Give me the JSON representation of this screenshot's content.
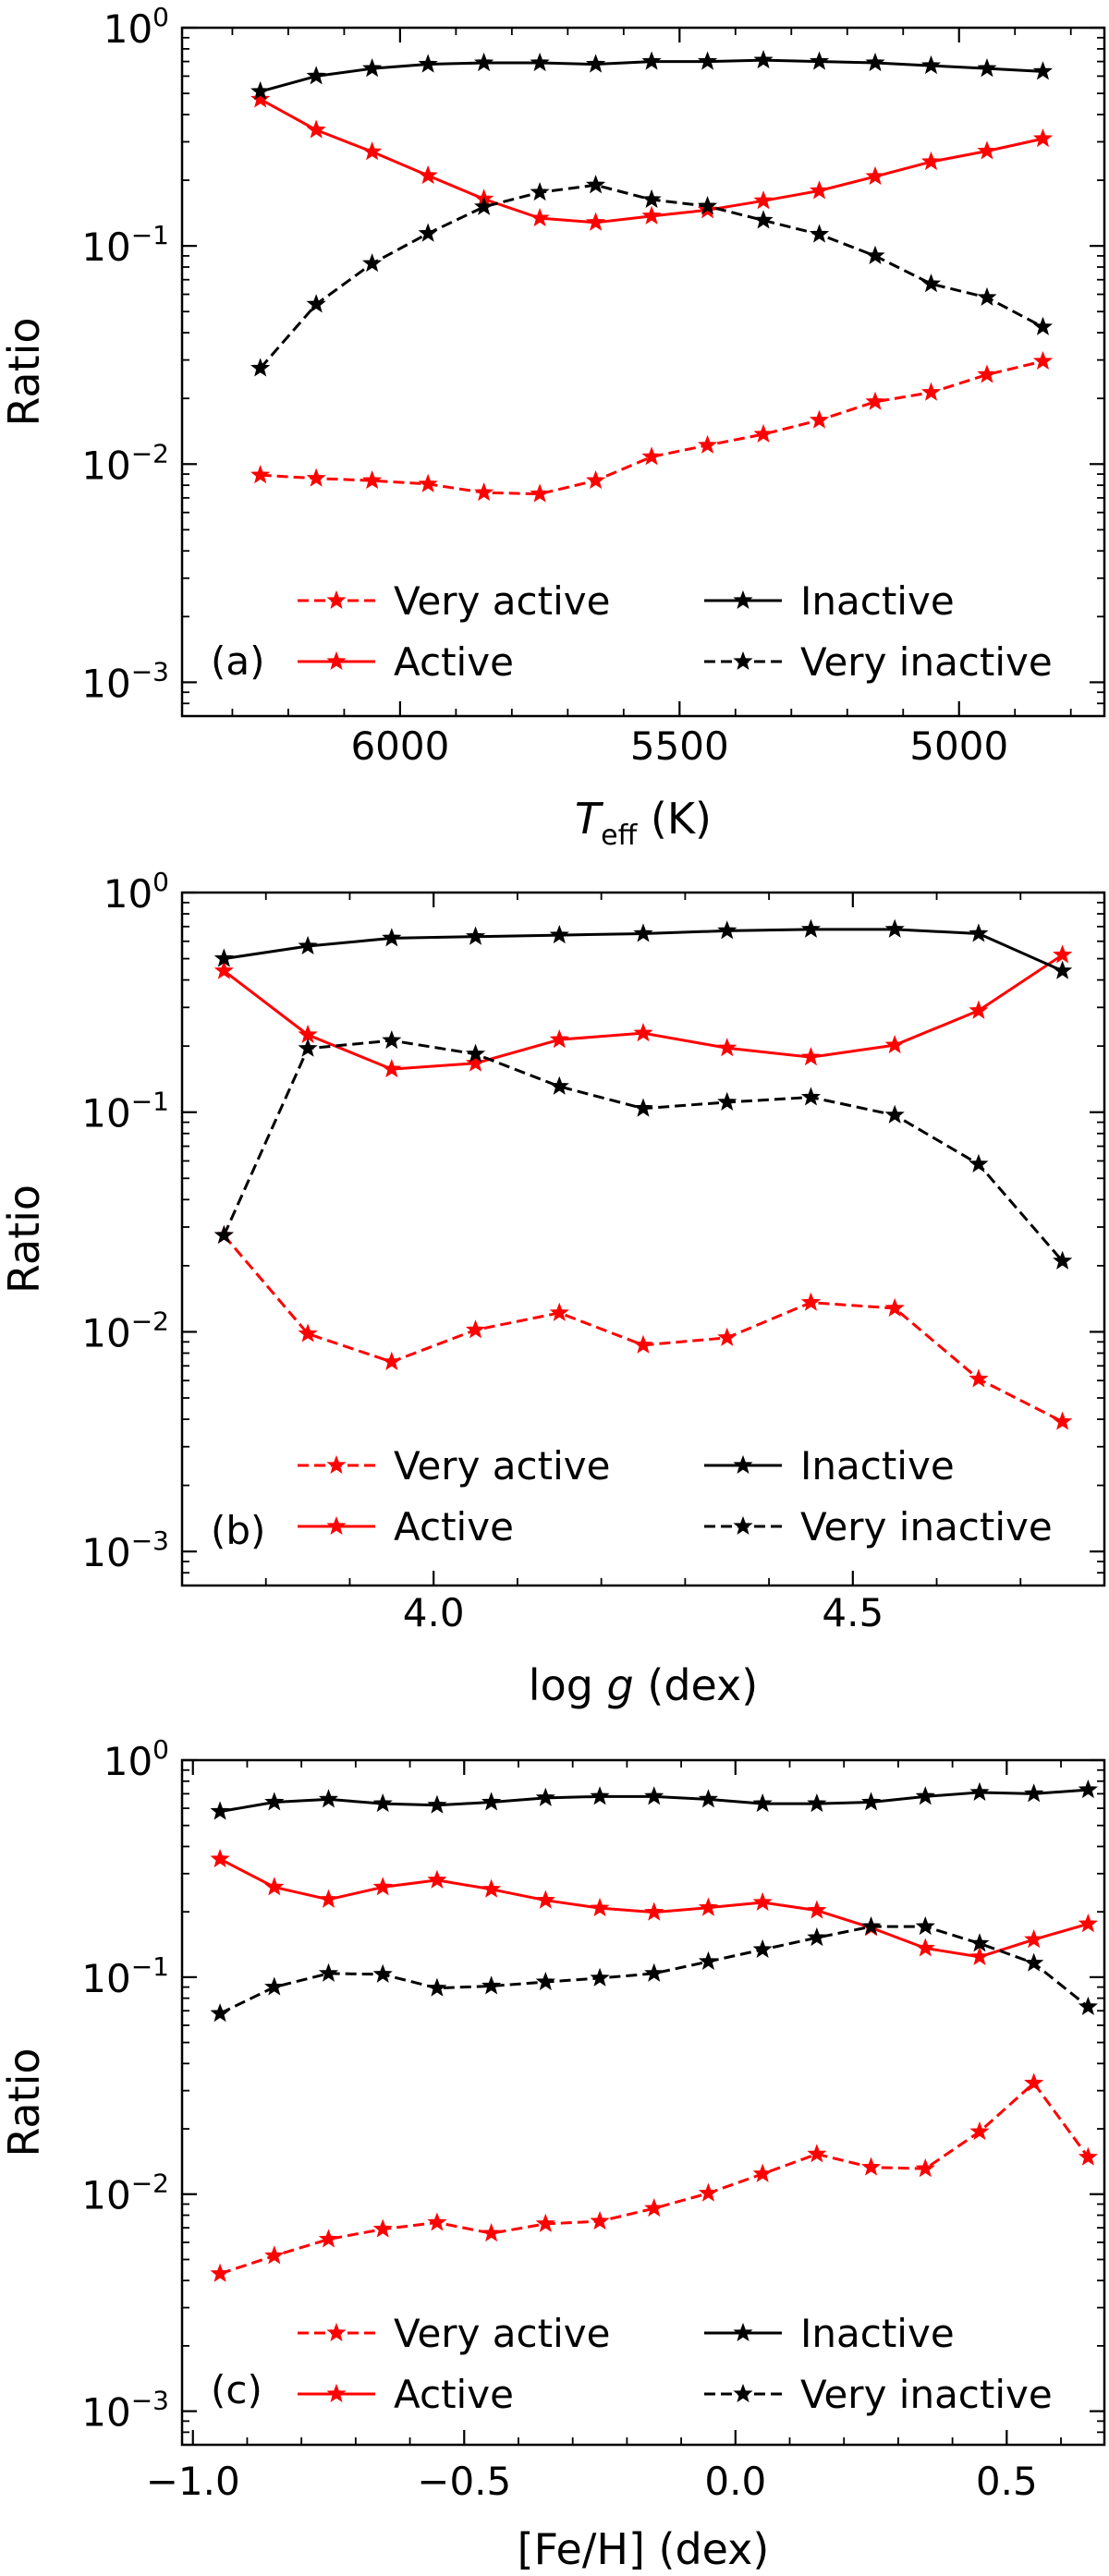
{
  "chart_data": [
    {
      "type": "line",
      "panel_label": "(a)",
      "xlabel_symbol": "T",
      "xlabel_sub": "eff",
      "xlabel_unit": " (K)",
      "ylabel": "Ratio",
      "yscale": "log",
      "ylim": [
        0.0007,
        1.0
      ],
      "xlim": [
        6390,
        4740
      ],
      "xdir": "reversed",
      "xticks": [
        6000,
        5500,
        5000
      ],
      "xtick_labels": [
        "6000",
        "5500",
        "5000"
      ],
      "x": [
        6250,
        6150,
        6050,
        5950,
        5850,
        5750,
        5650,
        5550,
        5450,
        5350,
        5250,
        5150,
        5050,
        4950,
        4850
      ],
      "series": [
        {
          "name": "Very active",
          "color": "#ff0000",
          "style": "dashed",
          "values": [
            0.0089,
            0.0086,
            0.0084,
            0.0081,
            0.0074,
            0.0073,
            0.0084,
            0.0108,
            0.0122,
            0.0137,
            0.0159,
            0.0193,
            0.0213,
            0.0257,
            0.0296
          ]
        },
        {
          "name": "Active",
          "color": "#ff0000",
          "style": "solid",
          "values": [
            0.47,
            0.34,
            0.27,
            0.21,
            0.164,
            0.134,
            0.128,
            0.137,
            0.146,
            0.161,
            0.179,
            0.208,
            0.243,
            0.272,
            0.31
          ]
        },
        {
          "name": "Inactive",
          "color": "#000000",
          "style": "solid",
          "values": [
            0.51,
            0.6,
            0.65,
            0.68,
            0.69,
            0.69,
            0.68,
            0.7,
            0.7,
            0.71,
            0.7,
            0.69,
            0.67,
            0.65,
            0.63
          ]
        },
        {
          "name": "Very inactive",
          "color": "#000000",
          "style": "dashed",
          "values": [
            0.0275,
            0.054,
            0.083,
            0.114,
            0.151,
            0.176,
            0.19,
            0.163,
            0.152,
            0.131,
            0.113,
            0.09,
            0.067,
            0.058,
            0.0425
          ]
        }
      ]
    },
    {
      "type": "line",
      "panel_label": "(b)",
      "xlabel_pre": "log ",
      "xlabel_symbol": "g",
      "xlabel_unit": " (dex)",
      "ylabel": "Ratio",
      "yscale": "log",
      "ylim": [
        0.0007,
        1.0
      ],
      "xlim": [
        3.7,
        4.8
      ],
      "xticks": [
        4.0,
        4.5
      ],
      "xtick_labels": [
        "4.0",
        "4.5"
      ],
      "x": [
        3.75,
        3.85,
        3.95,
        4.05,
        4.15,
        4.25,
        4.35,
        4.45,
        4.55,
        4.65,
        4.75
      ],
      "series": [
        {
          "name": "Very active",
          "color": "#ff0000",
          "style": "dashed",
          "values": [
            0.0275,
            0.0098,
            0.0073,
            0.0102,
            0.0122,
            0.0087,
            0.0094,
            0.0136,
            0.0128,
            0.0061,
            0.0039
          ]
        },
        {
          "name": "Active",
          "color": "#ff0000",
          "style": "solid",
          "values": [
            0.44,
            0.225,
            0.157,
            0.167,
            0.214,
            0.229,
            0.196,
            0.178,
            0.202,
            0.29,
            0.52
          ]
        },
        {
          "name": "Inactive",
          "color": "#000000",
          "style": "solid",
          "values": [
            0.5,
            0.57,
            0.62,
            0.63,
            0.64,
            0.65,
            0.67,
            0.68,
            0.68,
            0.65,
            0.44
          ]
        },
        {
          "name": "Very inactive",
          "color": "#000000",
          "style": "dashed",
          "values": [
            0.0275,
            0.195,
            0.212,
            0.184,
            0.131,
            0.104,
            0.111,
            0.117,
            0.097,
            0.058,
            0.021
          ]
        }
      ]
    },
    {
      "type": "line",
      "panel_label": "(c)",
      "xlabel": "[Fe/H] (dex)",
      "ylabel": "Ratio",
      "yscale": "log",
      "ylim": [
        0.0007,
        1.0
      ],
      "xlim": [
        -1.02,
        0.68
      ],
      "xticks": [
        -1.0,
        -0.5,
        0.0,
        0.5
      ],
      "xtick_labels": [
        "−1.0",
        "−0.5",
        "0.0",
        "0.5"
      ],
      "x": [
        -0.95,
        -0.85,
        -0.75,
        -0.65,
        -0.55,
        -0.45,
        -0.35,
        -0.25,
        -0.15,
        -0.05,
        0.05,
        0.15,
        0.25,
        0.35,
        0.45,
        0.55,
        0.65
      ],
      "series": [
        {
          "name": "Very active",
          "color": "#ff0000",
          "style": "dashed",
          "values": [
            0.0043,
            0.0052,
            0.0062,
            0.0069,
            0.0074,
            0.0066,
            0.0073,
            0.0075,
            0.0086,
            0.0101,
            0.0124,
            0.0153,
            0.0133,
            0.0131,
            0.0194,
            0.0325,
            0.0148
          ]
        },
        {
          "name": "Active",
          "color": "#ff0000",
          "style": "solid",
          "values": [
            0.35,
            0.26,
            0.228,
            0.26,
            0.28,
            0.254,
            0.226,
            0.208,
            0.199,
            0.209,
            0.221,
            0.203,
            0.169,
            0.136,
            0.124,
            0.149,
            0.176
          ]
        },
        {
          "name": "Inactive",
          "color": "#000000",
          "style": "solid",
          "values": [
            0.58,
            0.64,
            0.66,
            0.63,
            0.62,
            0.64,
            0.67,
            0.68,
            0.68,
            0.66,
            0.63,
            0.63,
            0.64,
            0.68,
            0.71,
            0.7,
            0.73
          ]
        },
        {
          "name": "Very inactive",
          "color": "#000000",
          "style": "dashed",
          "values": [
            0.068,
            0.09,
            0.104,
            0.103,
            0.089,
            0.091,
            0.095,
            0.099,
            0.104,
            0.118,
            0.134,
            0.152,
            0.171,
            0.171,
            0.143,
            0.116,
            0.073
          ]
        }
      ]
    }
  ],
  "ytick_labels": [
    {
      "base": "10",
      "exp": "−3"
    },
    {
      "base": "10",
      "exp": "−2"
    },
    {
      "base": "10",
      "exp": "−1"
    },
    {
      "base": "10",
      "exp": "0"
    }
  ],
  "legend_left": [
    "Very active",
    "Active"
  ],
  "legend_right": [
    "Inactive",
    "Very inactive"
  ]
}
